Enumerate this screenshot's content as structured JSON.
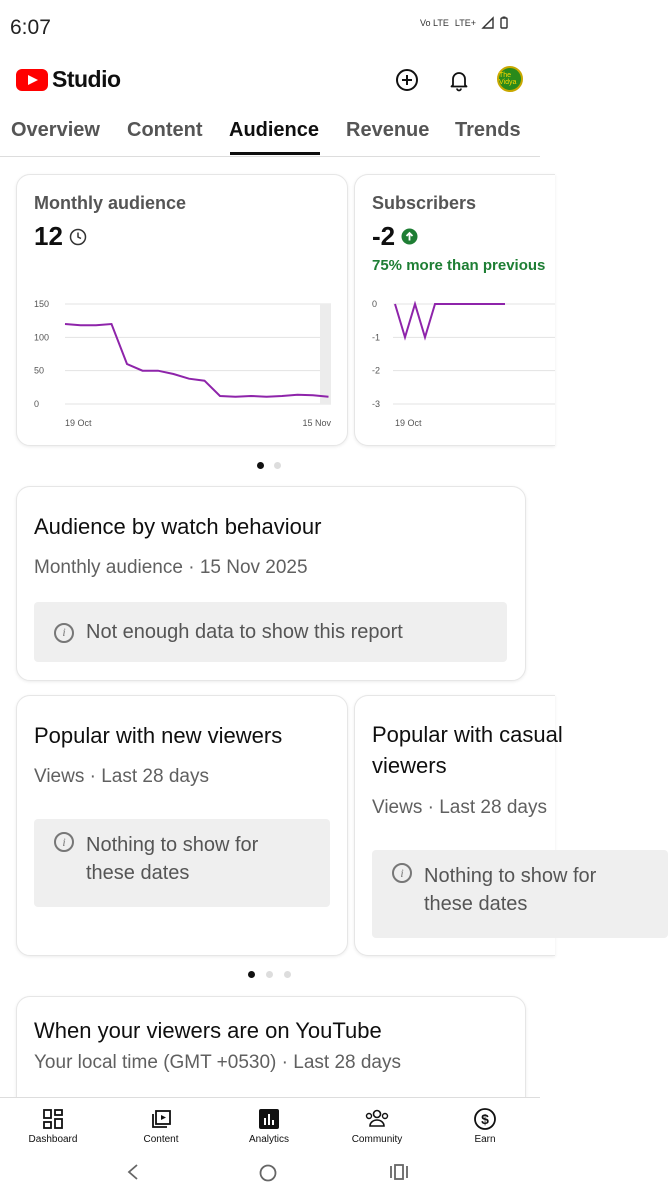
{
  "status": {
    "time": "6:07",
    "network": "Vo LTE",
    "signal": "LTE+"
  },
  "header": {
    "app_name": "Studio",
    "avatar_text": "The Vidya"
  },
  "tabs": [
    "Overview",
    "Content",
    "Audience",
    "Revenue",
    "Trends"
  ],
  "active_tab": "Audience",
  "monthly_audience": {
    "title": "Monthly audience",
    "value": "12",
    "chart_data": {
      "type": "line",
      "x_start": "19 Oct",
      "x_end": "15 Nov",
      "yticks": [
        "150",
        "100",
        "50",
        "0"
      ],
      "ylim": [
        0,
        150
      ],
      "values": [
        120,
        118,
        118,
        120,
        60,
        50,
        50,
        45,
        38,
        35,
        12,
        11,
        12,
        11,
        12,
        14,
        13,
        11
      ]
    }
  },
  "subscribers": {
    "title": "Subscribers",
    "value": "-2",
    "change_text": "75% more than previous",
    "chart_data": {
      "type": "line",
      "x_start": "19 Oct",
      "yticks": [
        "0",
        "-1",
        "-2",
        "-3"
      ],
      "ylim": [
        -3,
        0
      ],
      "values": [
        0,
        -1,
        0,
        -1,
        0,
        0,
        0,
        0,
        0,
        0,
        0,
        0
      ]
    }
  },
  "watch_behaviour": {
    "title": "Audience by watch behaviour",
    "subtitle": "Monthly audience · 15 Nov 2025",
    "empty": "Not enough data to show this report"
  },
  "popular_new": {
    "title": "Popular with new viewers",
    "subtitle": "Views · Last 28 days",
    "empty": "Nothing to show for these dates"
  },
  "popular_casual": {
    "title": "Popular with casual viewers",
    "subtitle": "Views · Last 28 days",
    "empty": "Nothing to show for these dates"
  },
  "when_on_youtube": {
    "title": "When your viewers are on YouTube",
    "subtitle": "Your local time (GMT +0530) · Last 28 days"
  },
  "bottom_nav": [
    "Dashboard",
    "Content",
    "Analytics",
    "Community",
    "Earn"
  ],
  "colors": {
    "accent": "#8e24aa",
    "positive": "#1e7e34",
    "brand": "#ff0000"
  }
}
